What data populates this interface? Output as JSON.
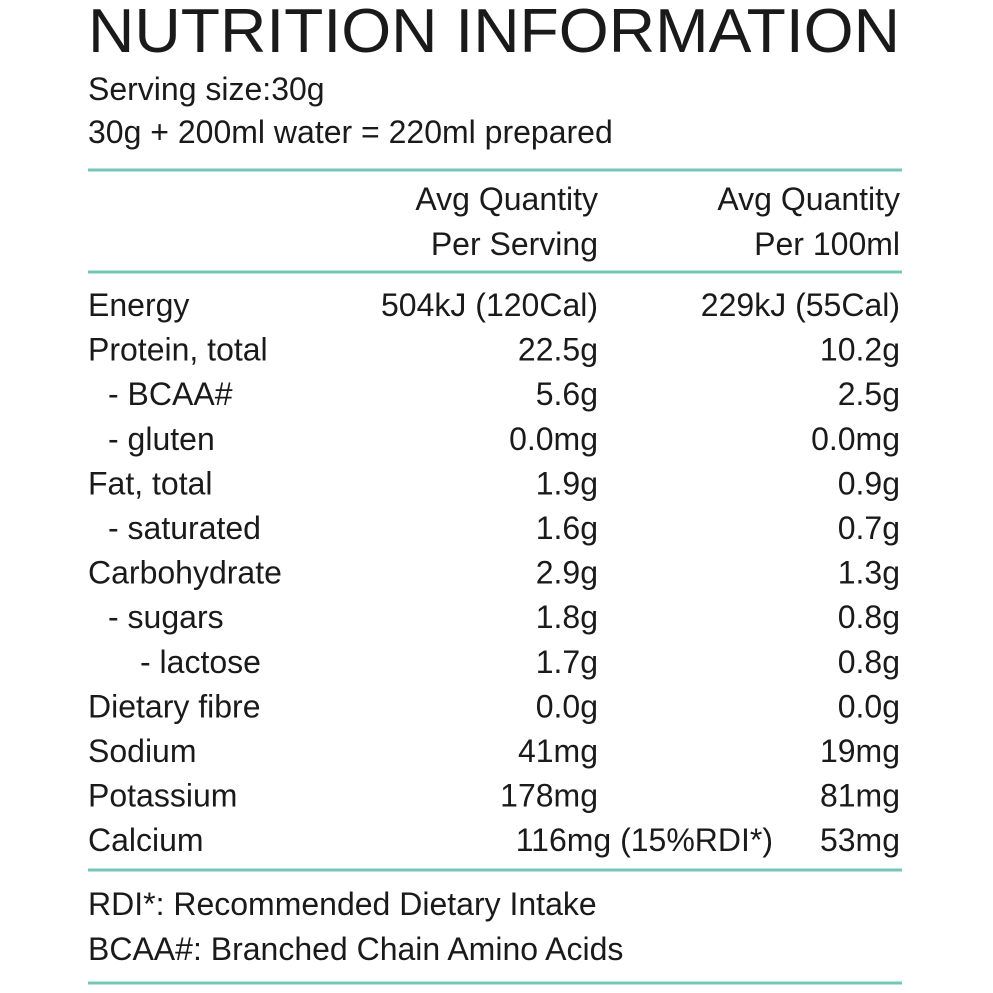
{
  "header": {
    "title": "NUTRITION INFORMATION",
    "serving_size": "Serving size:30g",
    "preparation": "30g + 200ml water = 220ml prepared"
  },
  "table": {
    "columns": [
      [
        "Avg Quantity",
        "Per Serving"
      ],
      [
        "Avg Quantity",
        "Per 100ml"
      ]
    ],
    "rows": [
      [
        "Energy",
        "504kJ (120Cal)",
        "229kJ (55Cal)"
      ],
      [
        "Protein, total",
        "22.5g",
        "10.2g"
      ],
      [
        "- BCAA#",
        "5.6g",
        "2.5g"
      ],
      [
        "- gluten",
        "0.0mg",
        "0.0mg"
      ],
      [
        "Fat, total",
        "1.9g",
        "0.9g"
      ],
      [
        "- saturated",
        "1.6g",
        "0.7g"
      ],
      [
        "Carbohydrate",
        "2.9g",
        "1.3g"
      ],
      [
        "- sugars",
        "1.8g",
        "0.8g"
      ],
      [
        "- lactose",
        "1.7g",
        "0.8g"
      ],
      [
        "Dietary fibre",
        "0.0g",
        "0.0g"
      ],
      [
        "Sodium",
        "41mg",
        "19mg"
      ],
      [
        "Potassium",
        "178mg",
        "81mg"
      ],
      [
        "Calcium",
        "116mg (15%RDI*)",
        "53mg"
      ]
    ]
  },
  "footnotes": [
    "RDI*: Recommended Dietary Intake",
    "BCAA#: Branched Chain Amino Acids"
  ]
}
